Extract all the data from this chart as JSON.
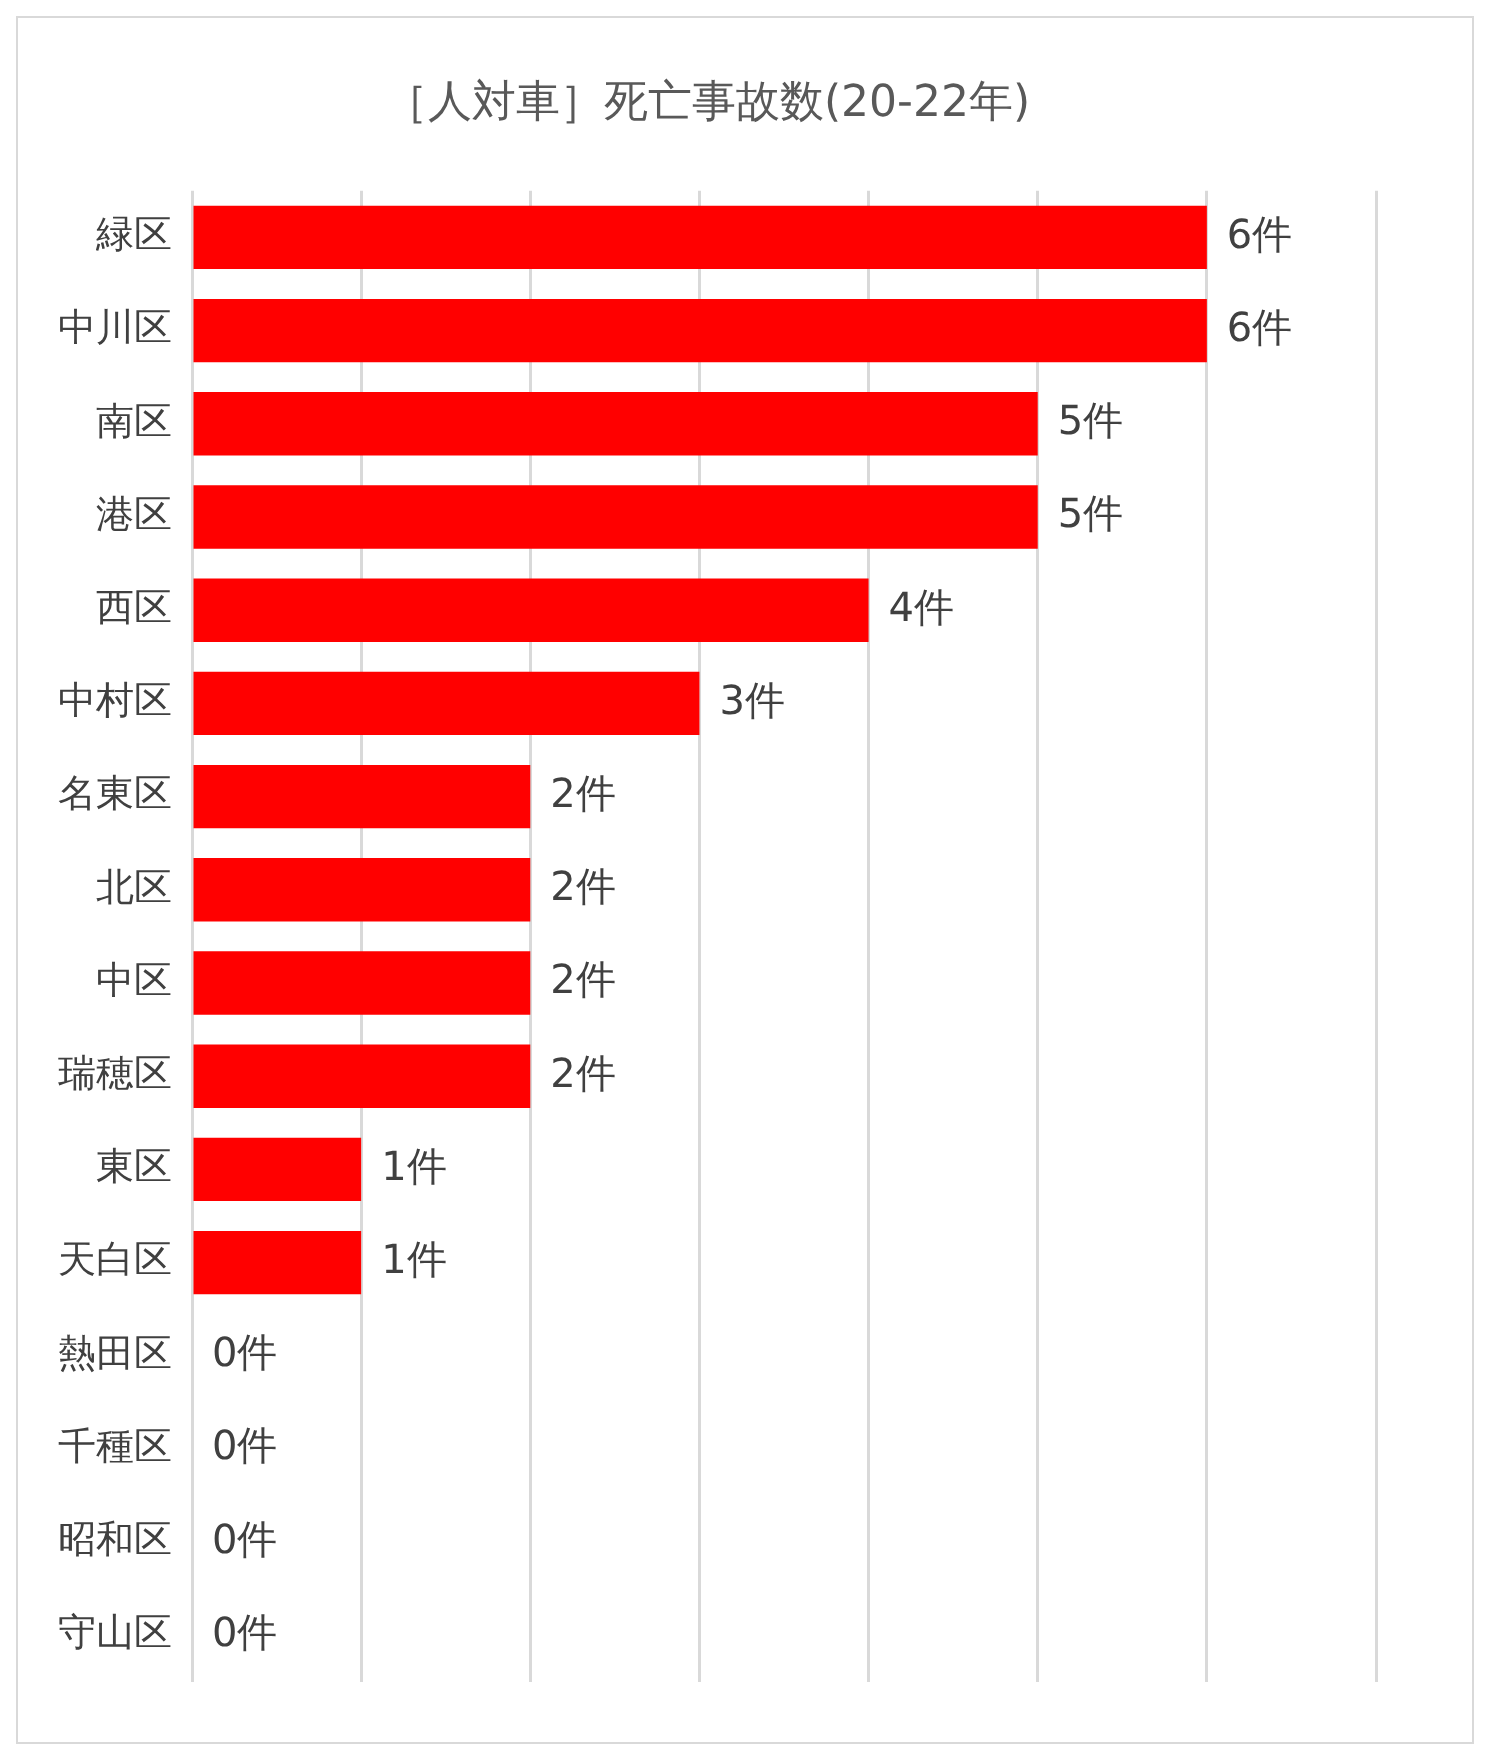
{
  "chart_data": {
    "type": "bar",
    "orientation": "horizontal",
    "title": "［人対車］死亡事故数(20-22年)",
    "categories": [
      "緑区",
      "中川区",
      "南区",
      "港区",
      "西区",
      "中村区",
      "名東区",
      "北区",
      "中区",
      "瑞穂区",
      "東区",
      "天白区",
      "熱田区",
      "千種区",
      "昭和区",
      "守山区"
    ],
    "values": [
      6,
      6,
      5,
      5,
      4,
      3,
      2,
      2,
      2,
      2,
      1,
      1,
      0,
      0,
      0,
      0
    ],
    "value_labels": [
      "6件",
      "6件",
      "5件",
      "5件",
      "4件",
      "3件",
      "2件",
      "2件",
      "2件",
      "2件",
      "1件",
      "1件",
      "0件",
      "0件",
      "0件",
      "0件"
    ],
    "color": "#ff0000",
    "xlim": [
      0,
      7
    ],
    "xticks": [
      {
        "value": 0,
        "label": null
      },
      {
        "value": 1,
        "label": null
      },
      {
        "value": 2,
        "label": null
      },
      {
        "value": 3,
        "label": null
      },
      {
        "value": 4,
        "label": null
      },
      {
        "value": 5,
        "label": null
      },
      {
        "value": 6,
        "label": null
      },
      {
        "value": 7,
        "label": null
      }
    ],
    "tick_labels": "y",
    "grid": "x",
    "legend": false
  }
}
